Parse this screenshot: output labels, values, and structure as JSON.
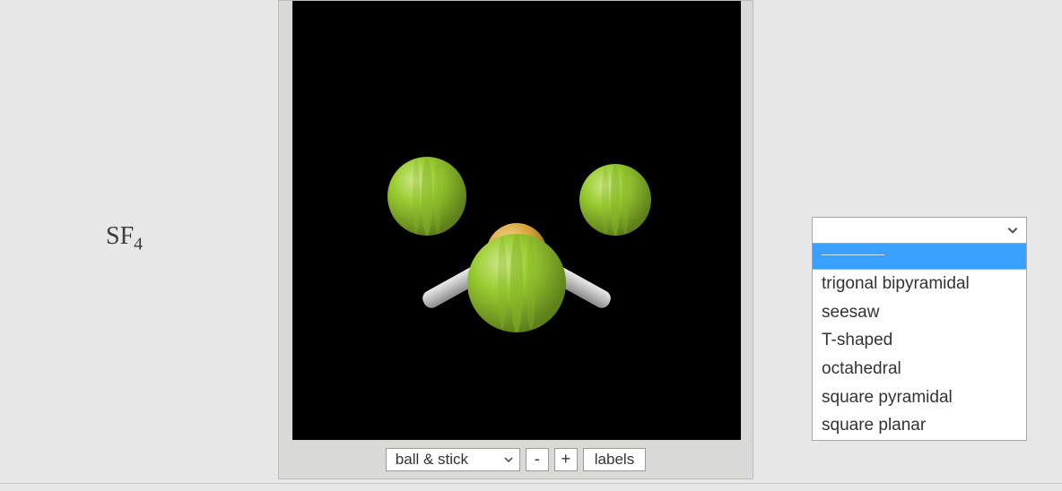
{
  "formula": {
    "base": "SF",
    "sub": "4"
  },
  "viewer": {
    "background": "#000000",
    "bond_color": "#c8c8c8",
    "atoms": {
      "center_color": "#d8a63a",
      "fluorine_color": "#9acd32",
      "fluorine_shade": "#6f9720",
      "fluorine_highlight": "#cfe88a"
    }
  },
  "toolbar": {
    "style_label": "ball & stick",
    "minus": "-",
    "plus": "+",
    "labels": "labels"
  },
  "dropdown": {
    "selected": "",
    "options": [
      "",
      "trigonal bipyramidal",
      "seesaw",
      "T-shaped",
      "octahedral",
      "square pyramidal",
      "square planar"
    ],
    "highlight_index": 0,
    "highlight_bg": "#3aa0ff"
  }
}
